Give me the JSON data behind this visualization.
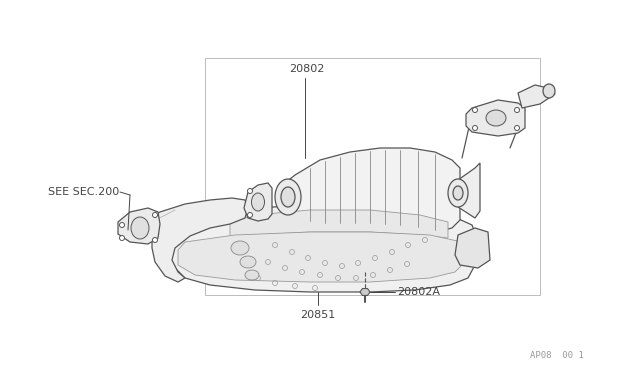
{
  "background_color": "#FFFFFF",
  "line_color": "#555555",
  "label_color": "#444444",
  "watermark": "AP08  00 1",
  "fig_width": 6.4,
  "fig_height": 3.72,
  "dpi": 100
}
